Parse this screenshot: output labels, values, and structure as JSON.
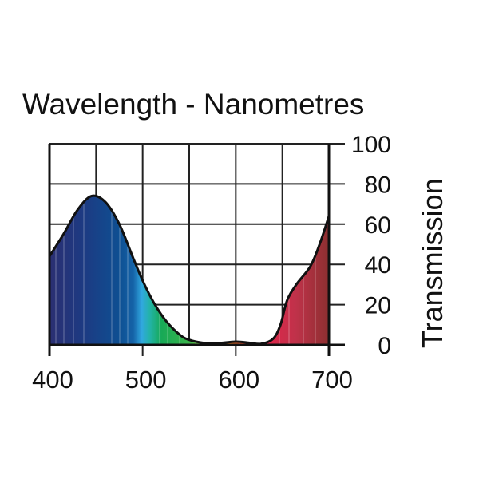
{
  "chart_data": {
    "type": "area",
    "title": "Wavelength - Nanometres",
    "xlabel": "Wavelength - Nanometres",
    "ylabel": "Transmission",
    "xlim": [
      400,
      700
    ],
    "ylim": [
      0,
      100
    ],
    "x_ticks": [
      400,
      500,
      600,
      700
    ],
    "x_tick_labels": [
      "400",
      "500",
      "600",
      "700"
    ],
    "y_ticks": [
      0,
      20,
      40,
      60,
      80,
      100
    ],
    "y_tick_labels": [
      "0",
      "20",
      "40",
      "60",
      "80",
      "100"
    ],
    "grid": true,
    "series": [
      {
        "name": "Transmission",
        "x": [
          400,
          415,
          430,
          445,
          460,
          475,
          490,
          500,
          512,
          525,
          540,
          550,
          565,
          580,
          600,
          615,
          627,
          640,
          648,
          655,
          665,
          680,
          690,
          700
        ],
        "y": [
          44,
          55,
          67,
          74,
          71,
          60,
          43,
          32,
          21,
          12,
          5,
          2.5,
          1,
          0.8,
          1.6,
          1,
          0.5,
          3,
          10,
          22,
          30,
          39,
          50,
          64
        ]
      }
    ],
    "colors": {
      "line": "#111111",
      "grid": "#222222"
    }
  }
}
